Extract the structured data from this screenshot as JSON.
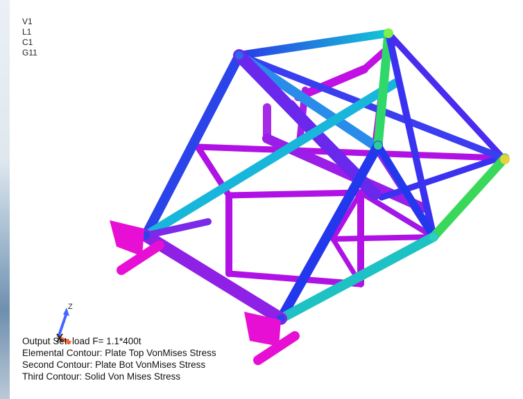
{
  "view_labels": [
    "V1",
    "L1",
    "C1",
    "G11"
  ],
  "output_info": {
    "output_set": "Output Set: load F= 1.1*400t",
    "elemental_contour": "Elemental Contour: Plate Top VonMises Stress",
    "second_contour": "Second Contour: Plate Bot VonMises Stress",
    "third_contour": "Third Contour: Solid Von Mises Stress"
  },
  "triad_axis_label": "Z",
  "colors": {
    "stress_low": "#b000e8",
    "stress_low_mid": "#3a3af0",
    "stress_mid": "#15c8d8",
    "stress_high": "#4ee070",
    "plate": "#e80fd4"
  }
}
